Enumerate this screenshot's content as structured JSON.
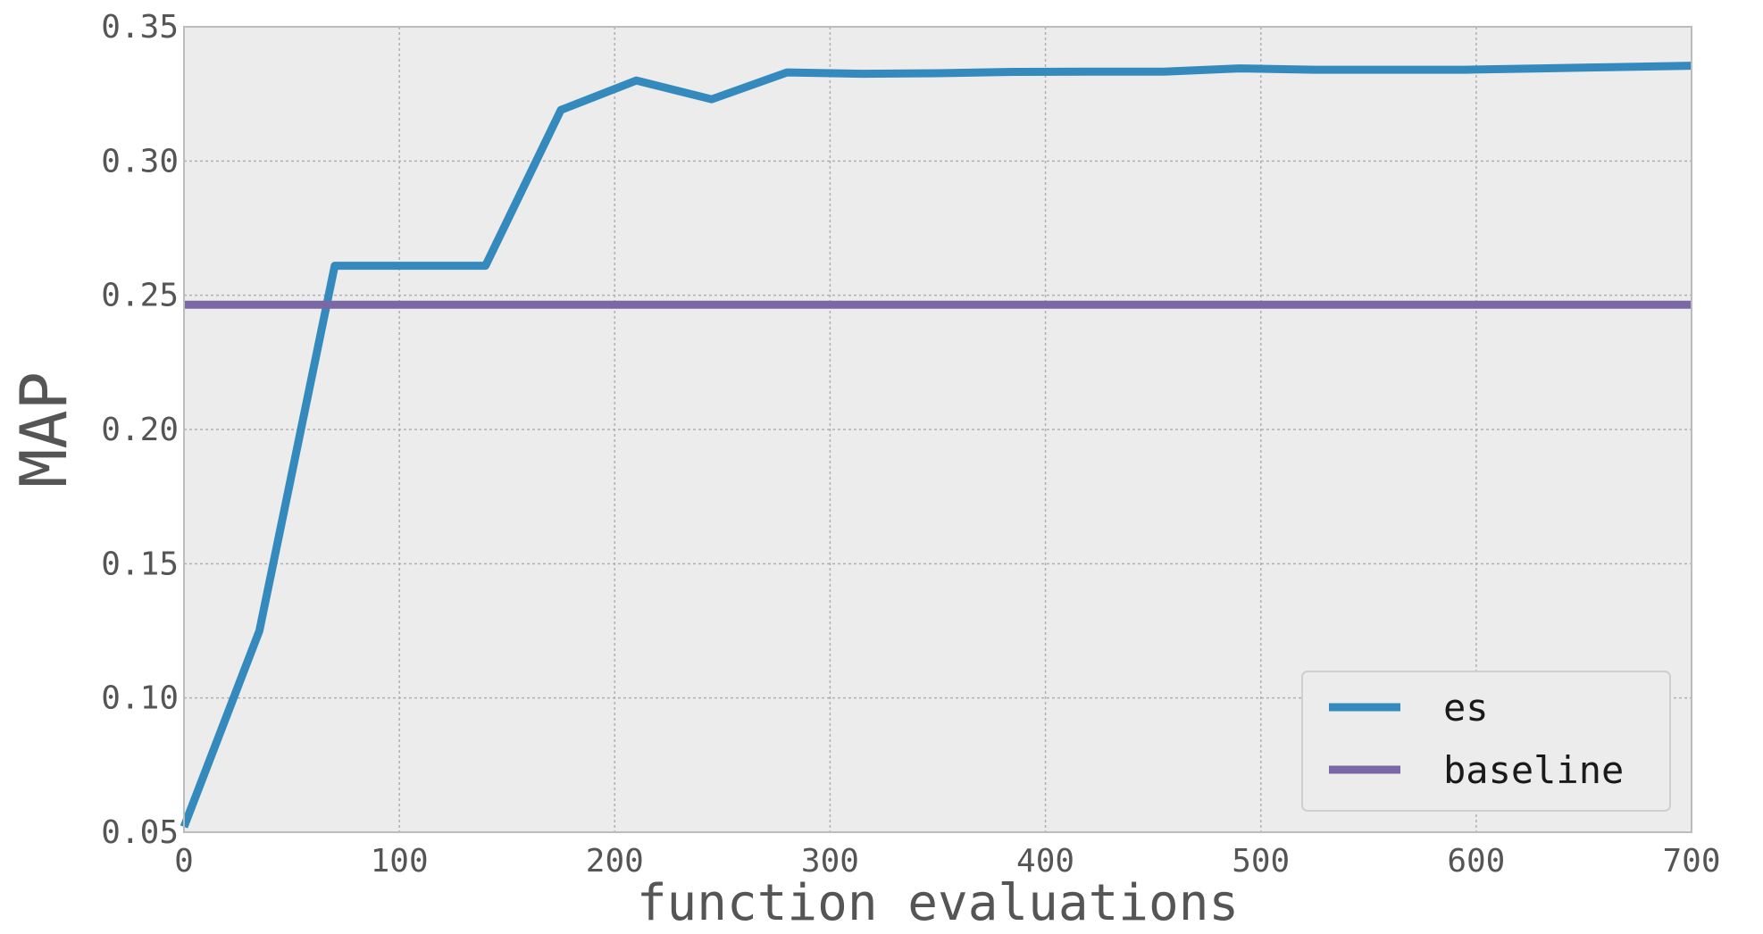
{
  "chart_data": {
    "type": "line",
    "title": "",
    "xlabel": "function evaluations",
    "ylabel": "MAP",
    "xlim": [
      0,
      700
    ],
    "ylim": [
      0.05,
      0.35
    ],
    "x_ticks": [
      0,
      100,
      200,
      300,
      400,
      500,
      600,
      700
    ],
    "x_tick_labels": [
      "0",
      "100",
      "200",
      "300",
      "400",
      "500",
      "600",
      "700"
    ],
    "y_ticks": [
      0.05,
      0.1,
      0.15,
      0.2,
      0.25,
      0.3,
      0.35
    ],
    "y_tick_labels": [
      "0.05",
      "0.10",
      "0.15",
      "0.20",
      "0.25",
      "0.30",
      "0.35"
    ],
    "grid": true,
    "legend_position": "bottom-right",
    "series": [
      {
        "name": "es",
        "color": "#348abd",
        "x": [
          0,
          35,
          70,
          105,
          140,
          175,
          210,
          245,
          280,
          315,
          350,
          385,
          420,
          455,
          490,
          525,
          560,
          595,
          630,
          665,
          700
        ],
        "y": [
          0.052,
          0.125,
          0.261,
          0.261,
          0.261,
          0.319,
          0.33,
          0.323,
          0.333,
          0.3325,
          0.3327,
          0.3332,
          0.3333,
          0.3333,
          0.3345,
          0.334,
          0.334,
          0.334,
          0.3345,
          0.335,
          0.3355
        ]
      },
      {
        "name": "baseline",
        "color": "#7a68a6",
        "x": [
          0,
          700
        ],
        "y": [
          0.2465,
          0.2465
        ]
      }
    ]
  }
}
